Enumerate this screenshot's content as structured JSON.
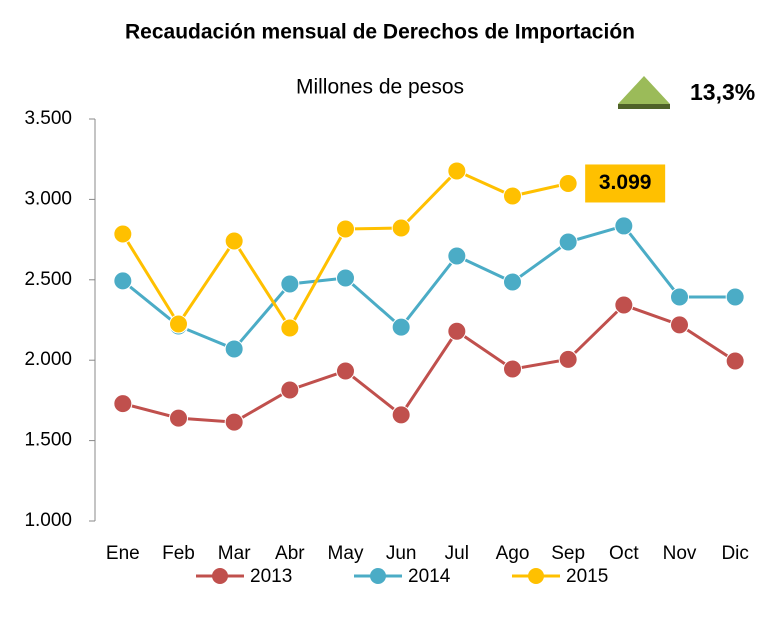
{
  "chart_data": {
    "type": "line",
    "title": "Recaudación mensual de Derechos de Importación",
    "subtitle": "Millones de pesos",
    "annotation": "13,3%",
    "categories": [
      "Ene",
      "Feb",
      "Mar",
      "Abr",
      "May",
      "Jun",
      "Jul",
      "Ago",
      "Sep",
      "Oct",
      "Nov",
      "Dic"
    ],
    "series": [
      {
        "name": "2013",
        "color": "#c0504d",
        "values": [
          1730,
          1640,
          1615,
          1815,
          1933,
          1660,
          2180,
          1945,
          2005,
          2343,
          2220,
          1995
        ]
      },
      {
        "name": "2014",
        "color": "#4bacc6",
        "values": [
          2493,
          2213,
          2070,
          2474,
          2511,
          2206,
          2648,
          2486,
          2735,
          2835,
          2393,
          2393
        ]
      },
      {
        "name": "2015",
        "color": "#ffc000",
        "values": [
          2785,
          2225,
          2741,
          2200,
          2816,
          2822,
          3177,
          3021,
          3099,
          null,
          null,
          null
        ],
        "value_labels": [
          null,
          null,
          null,
          null,
          null,
          null,
          null,
          null,
          "3.099",
          null,
          null,
          null
        ]
      }
    ],
    "ylim": [
      1000,
      3500
    ],
    "yticks": [
      {
        "value": 1000,
        "label": "1.000"
      },
      {
        "value": 1500,
        "label": "1.500"
      },
      {
        "value": 2000,
        "label": "2.000"
      },
      {
        "value": 2500,
        "label": "2.500"
      },
      {
        "value": 3000,
        "label": "3.000"
      },
      {
        "value": 3500,
        "label": "3.500"
      }
    ],
    "grid": false
  }
}
